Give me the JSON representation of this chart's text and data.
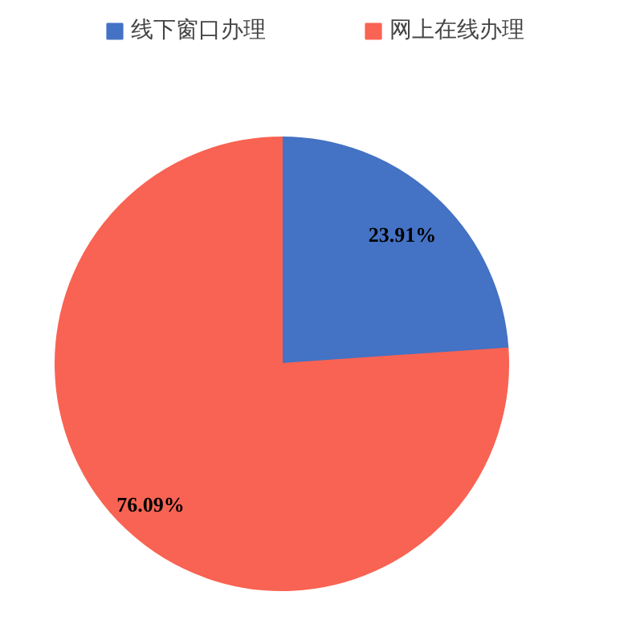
{
  "chart_data": {
    "type": "pie",
    "categories": [
      "线下窗口办理",
      "网上在线办理"
    ],
    "values": [
      23.91,
      76.09
    ],
    "colors": [
      "#4472c4",
      "#f96353"
    ],
    "value_labels": [
      "23.91%",
      "76.09%"
    ],
    "legend": "top"
  }
}
